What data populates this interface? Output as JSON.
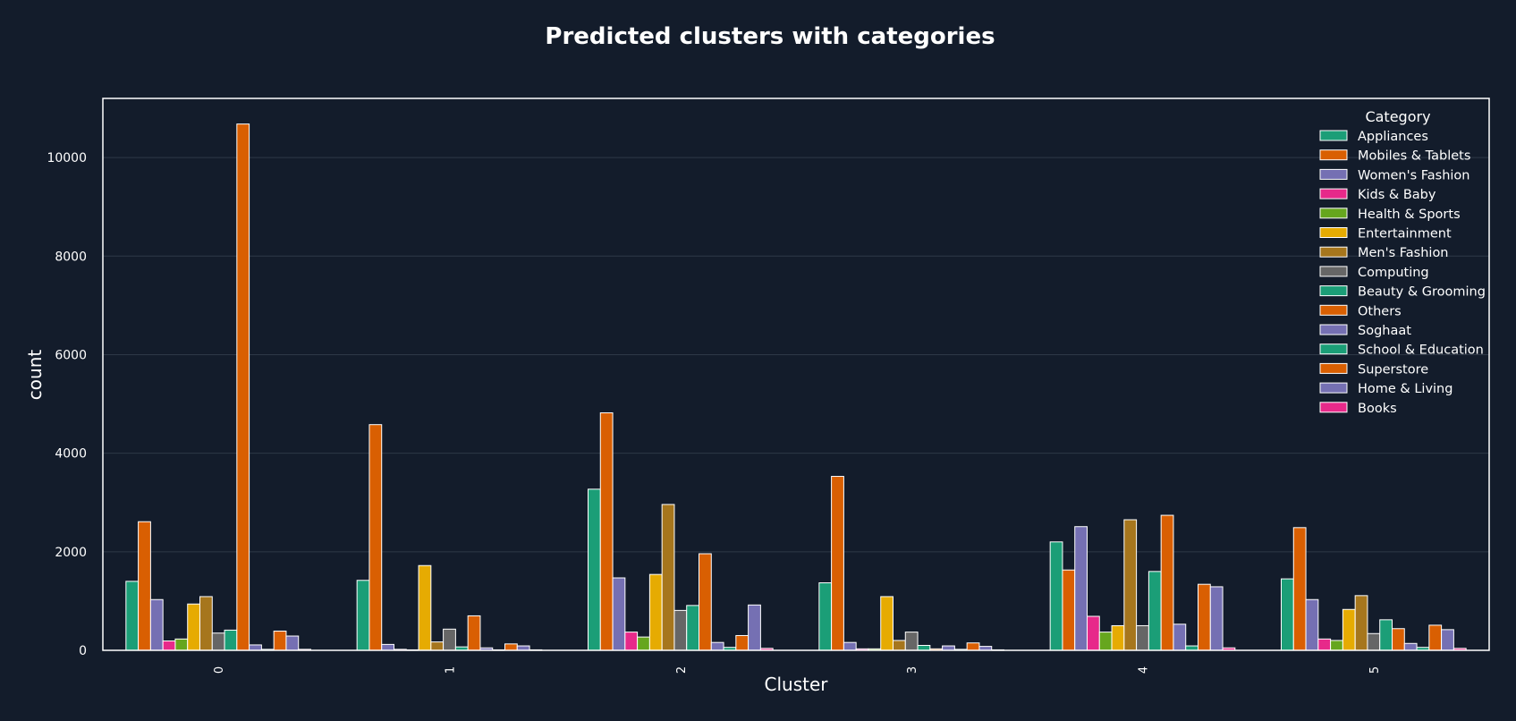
{
  "chart_data": {
    "type": "bar",
    "title": "Predicted clusters with categories",
    "xlabel": "Cluster",
    "ylabel": "count",
    "legend_title": "Category",
    "legend_position": "top-right",
    "grid": true,
    "ylim": [
      0,
      11200
    ],
    "yticks": [
      0,
      2000,
      4000,
      6000,
      8000,
      10000
    ],
    "categories": [
      "0",
      "1",
      "2",
      "3",
      "4",
      "5"
    ],
    "series": [
      {
        "name": "Appliances",
        "color": "#1b9e77",
        "values": [
          1400,
          1420,
          3270,
          1370,
          2200,
          1450
        ]
      },
      {
        "name": "Mobiles & Tablets",
        "color": "#d95f02",
        "values": [
          2610,
          4580,
          4820,
          3530,
          1630,
          2490
        ]
      },
      {
        "name": "Women's Fashion",
        "color": "#7570b3",
        "values": [
          1030,
          120,
          1470,
          160,
          2510,
          1030
        ]
      },
      {
        "name": "Kids & Baby",
        "color": "#e7298a",
        "values": [
          190,
          20,
          370,
          30,
          690,
          230
        ]
      },
      {
        "name": "Health & Sports",
        "color": "#66a61e",
        "values": [
          230,
          10,
          270,
          30,
          370,
          200
        ]
      },
      {
        "name": "Entertainment",
        "color": "#e6ab02",
        "values": [
          940,
          1720,
          1540,
          1090,
          500,
          830
        ]
      },
      {
        "name": "Men's Fashion",
        "color": "#a6761d",
        "values": [
          1090,
          170,
          2960,
          200,
          2650,
          1110
        ]
      },
      {
        "name": "Computing",
        "color": "#666666",
        "values": [
          350,
          430,
          810,
          370,
          500,
          340
        ]
      },
      {
        "name": "Beauty & Grooming",
        "color": "#1b9e77",
        "values": [
          410,
          70,
          910,
          100,
          1600,
          620
        ]
      },
      {
        "name": "Others",
        "color": "#d95f02",
        "values": [
          10680,
          700,
          1960,
          30,
          2740,
          440
        ]
      },
      {
        "name": "Soghaat",
        "color": "#7570b3",
        "values": [
          110,
          50,
          160,
          90,
          530,
          140
        ]
      },
      {
        "name": "School & Education",
        "color": "#1b9e77",
        "values": [
          20,
          10,
          60,
          20,
          90,
          60
        ]
      },
      {
        "name": "Superstore",
        "color": "#d95f02",
        "values": [
          390,
          130,
          300,
          150,
          1340,
          510
        ]
      },
      {
        "name": "Home & Living",
        "color": "#7570b3",
        "values": [
          290,
          90,
          920,
          80,
          1290,
          420
        ]
      },
      {
        "name": "Books",
        "color": "#e7298a",
        "values": [
          20,
          10,
          40,
          10,
          50,
          40
        ]
      }
    ]
  },
  "colors": {
    "background": "#131c2b",
    "grid": "#2e3847",
    "frame": "#ffffff",
    "text": "#ffffff",
    "bar_edge": "#ffffff"
  }
}
